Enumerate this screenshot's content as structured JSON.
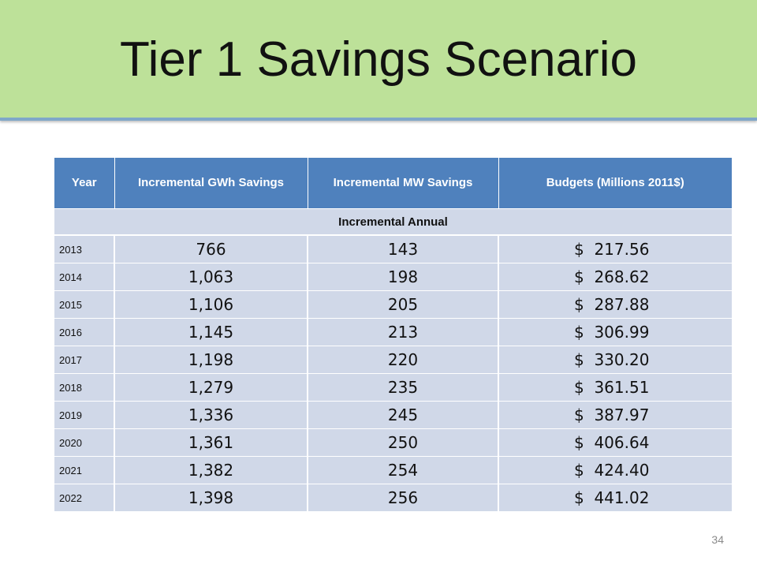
{
  "slide": {
    "title": "Tier 1 Savings Scenario",
    "page_number": "34",
    "colors": {
      "title_band": "#bde199",
      "title_band_border": "#7fa7c9",
      "header_fill": "#4f81bd",
      "row_fill": "#d0d8e8"
    }
  },
  "table": {
    "headers": [
      "Year",
      "Incremental GWh Savings",
      "Incremental MW Savings",
      "Budgets (Millions 2011$)"
    ],
    "section_label": "Incremental Annual",
    "rows": [
      {
        "year": "2013",
        "gwh": "766",
        "mw": "143",
        "budget": "$  217.56"
      },
      {
        "year": "2014",
        "gwh": "1,063",
        "mw": "198",
        "budget": "$  268.62"
      },
      {
        "year": "2015",
        "gwh": "1,106",
        "mw": "205",
        "budget": "$  287.88"
      },
      {
        "year": "2016",
        "gwh": "1,145",
        "mw": "213",
        "budget": "$  306.99"
      },
      {
        "year": "2017",
        "gwh": "1,198",
        "mw": "220",
        "budget": "$  330.20"
      },
      {
        "year": "2018",
        "gwh": "1,279",
        "mw": "235",
        "budget": "$  361.51"
      },
      {
        "year": "2019",
        "gwh": "1,336",
        "mw": "245",
        "budget": "$  387.97"
      },
      {
        "year": "2020",
        "gwh": "1,361",
        "mw": "250",
        "budget": "$  406.64"
      },
      {
        "year": "2021",
        "gwh": "1,382",
        "mw": "254",
        "budget": "$  424.40"
      },
      {
        "year": "2022",
        "gwh": "1,398",
        "mw": "256",
        "budget": "$  441.02"
      }
    ]
  }
}
